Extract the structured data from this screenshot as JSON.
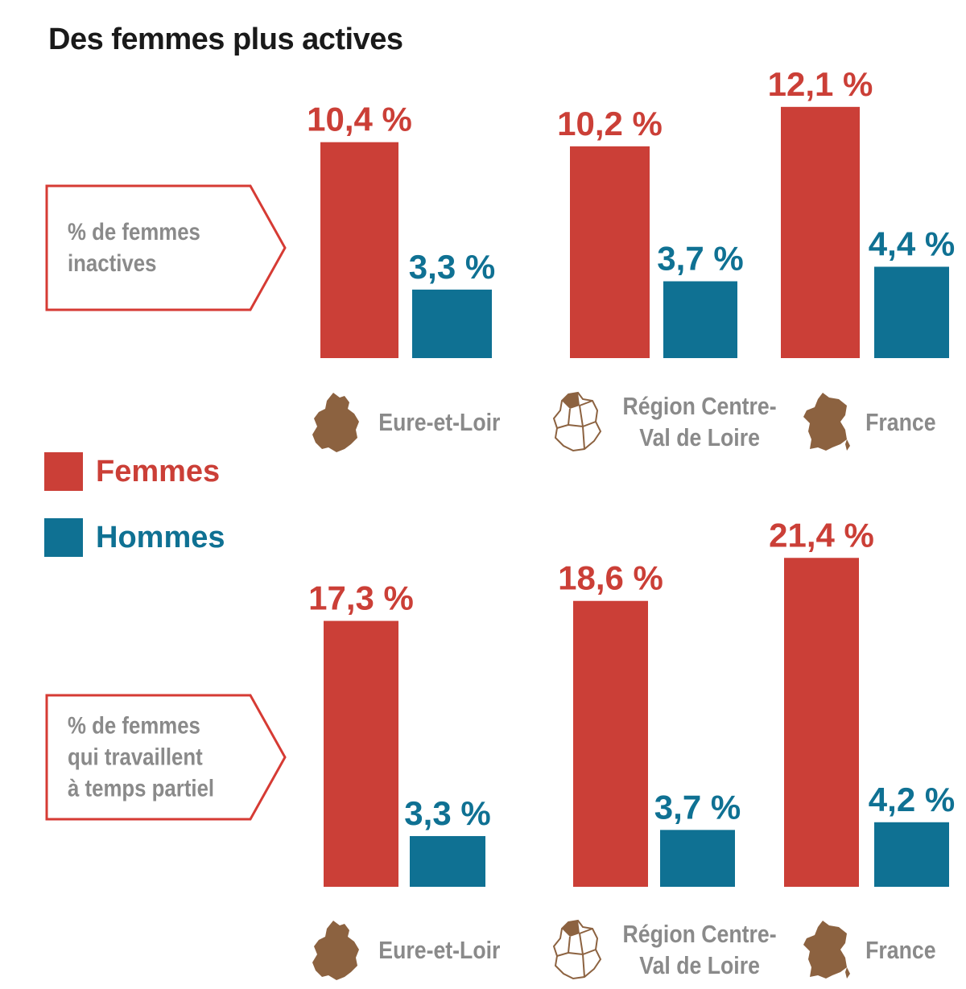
{
  "title": "Des femmes plus actives",
  "colors": {
    "femmes": "#cb3f37",
    "hommes": "#0f7193",
    "callout_border": "#d63b34",
    "label_gray": "#8a8a8a",
    "map_brown": "#8c6240"
  },
  "legend": {
    "femmes": "Femmes",
    "hommes": "Hommes"
  },
  "regions": [
    "Eure-et-Loir",
    "Région Centre-Val de Loire",
    "France"
  ],
  "region_labels": {
    "eure": "Eure-et-Loir",
    "centre_line1": "Région Centre-",
    "centre_line2": "Val de Loire",
    "france": "France"
  },
  "callouts": {
    "inactives": {
      "line1": "% de femmes",
      "line2": "inactives"
    },
    "partiel": {
      "line1": "% de femmes",
      "line2": "qui travaillent",
      "line3": "à temps partiel"
    }
  },
  "chart_data": [
    {
      "type": "bar",
      "title": "% de femmes inactives",
      "categories": [
        "Eure-et-Loir",
        "Région Centre-Val de Loire",
        "France"
      ],
      "series": [
        {
          "name": "Femmes",
          "values": [
            10.4,
            10.2,
            12.1
          ],
          "labels": [
            "10,4 %",
            "10,2 %",
            "12,1 %"
          ]
        },
        {
          "name": "Hommes",
          "values": [
            3.3,
            3.7,
            4.4
          ],
          "labels": [
            "3,3 %",
            "3,7 %",
            "4,4 %"
          ]
        }
      ]
    },
    {
      "type": "bar",
      "title": "% de femmes qui travaillent à temps partiel",
      "categories": [
        "Eure-et-Loir",
        "Région Centre-Val de Loire",
        "France"
      ],
      "series": [
        {
          "name": "Femmes",
          "values": [
            17.3,
            18.6,
            21.4
          ],
          "labels": [
            "17,3 %",
            "18,6 %",
            "21,4 %"
          ]
        },
        {
          "name": "Hommes",
          "values": [
            3.3,
            3.7,
            4.2
          ],
          "labels": [
            "3,3 %",
            "3,7 %",
            "4,2 %"
          ]
        }
      ]
    }
  ]
}
